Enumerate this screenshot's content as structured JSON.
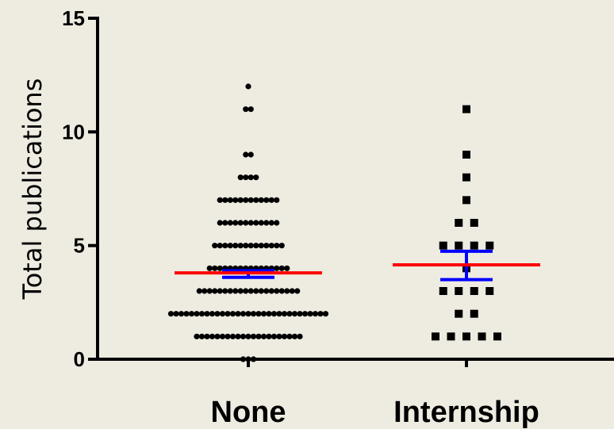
{
  "chart_data": {
    "type": "scatter",
    "subtype": "dot-plot",
    "title": "",
    "ylabel": "Total publications",
    "xlabel": "",
    "ylim": [
      0,
      15
    ],
    "yticks": [
      0,
      5,
      10,
      15
    ],
    "categories": [
      "None",
      "Internship"
    ],
    "grid": false,
    "colors": {
      "points": "#000000",
      "mean_line": "#FF0000",
      "error_bars": "#0000FF",
      "axis": "#000000",
      "background": "#EEEBE1"
    },
    "series": [
      {
        "category": "None",
        "marker": "circle",
        "mean": 3.8,
        "error_low": 3.6,
        "error_high": 3.9,
        "counts": [
          {
            "y": 0,
            "n": 3
          },
          {
            "y": 1,
            "n": 21
          },
          {
            "y": 2,
            "n": 31
          },
          {
            "y": 3,
            "n": 20
          },
          {
            "y": 4,
            "n": 16
          },
          {
            "y": 5,
            "n": 14
          },
          {
            "y": 6,
            "n": 12
          },
          {
            "y": 7,
            "n": 12
          },
          {
            "y": 8,
            "n": 4
          },
          {
            "y": 9,
            "n": 2
          },
          {
            "y": 11,
            "n": 2
          },
          {
            "y": 12,
            "n": 1
          }
        ]
      },
      {
        "category": "Internship",
        "marker": "square",
        "mean": 4.15,
        "error_low": 3.5,
        "error_high": 4.75,
        "counts": [
          {
            "y": 1,
            "n": 5
          },
          {
            "y": 2,
            "n": 2
          },
          {
            "y": 3,
            "n": 4
          },
          {
            "y": 4,
            "n": 1
          },
          {
            "y": 5,
            "n": 4
          },
          {
            "y": 6,
            "n": 2
          },
          {
            "y": 7,
            "n": 1
          },
          {
            "y": 8,
            "n": 1
          },
          {
            "y": 9,
            "n": 1
          },
          {
            "y": 11,
            "n": 1
          }
        ]
      }
    ]
  }
}
